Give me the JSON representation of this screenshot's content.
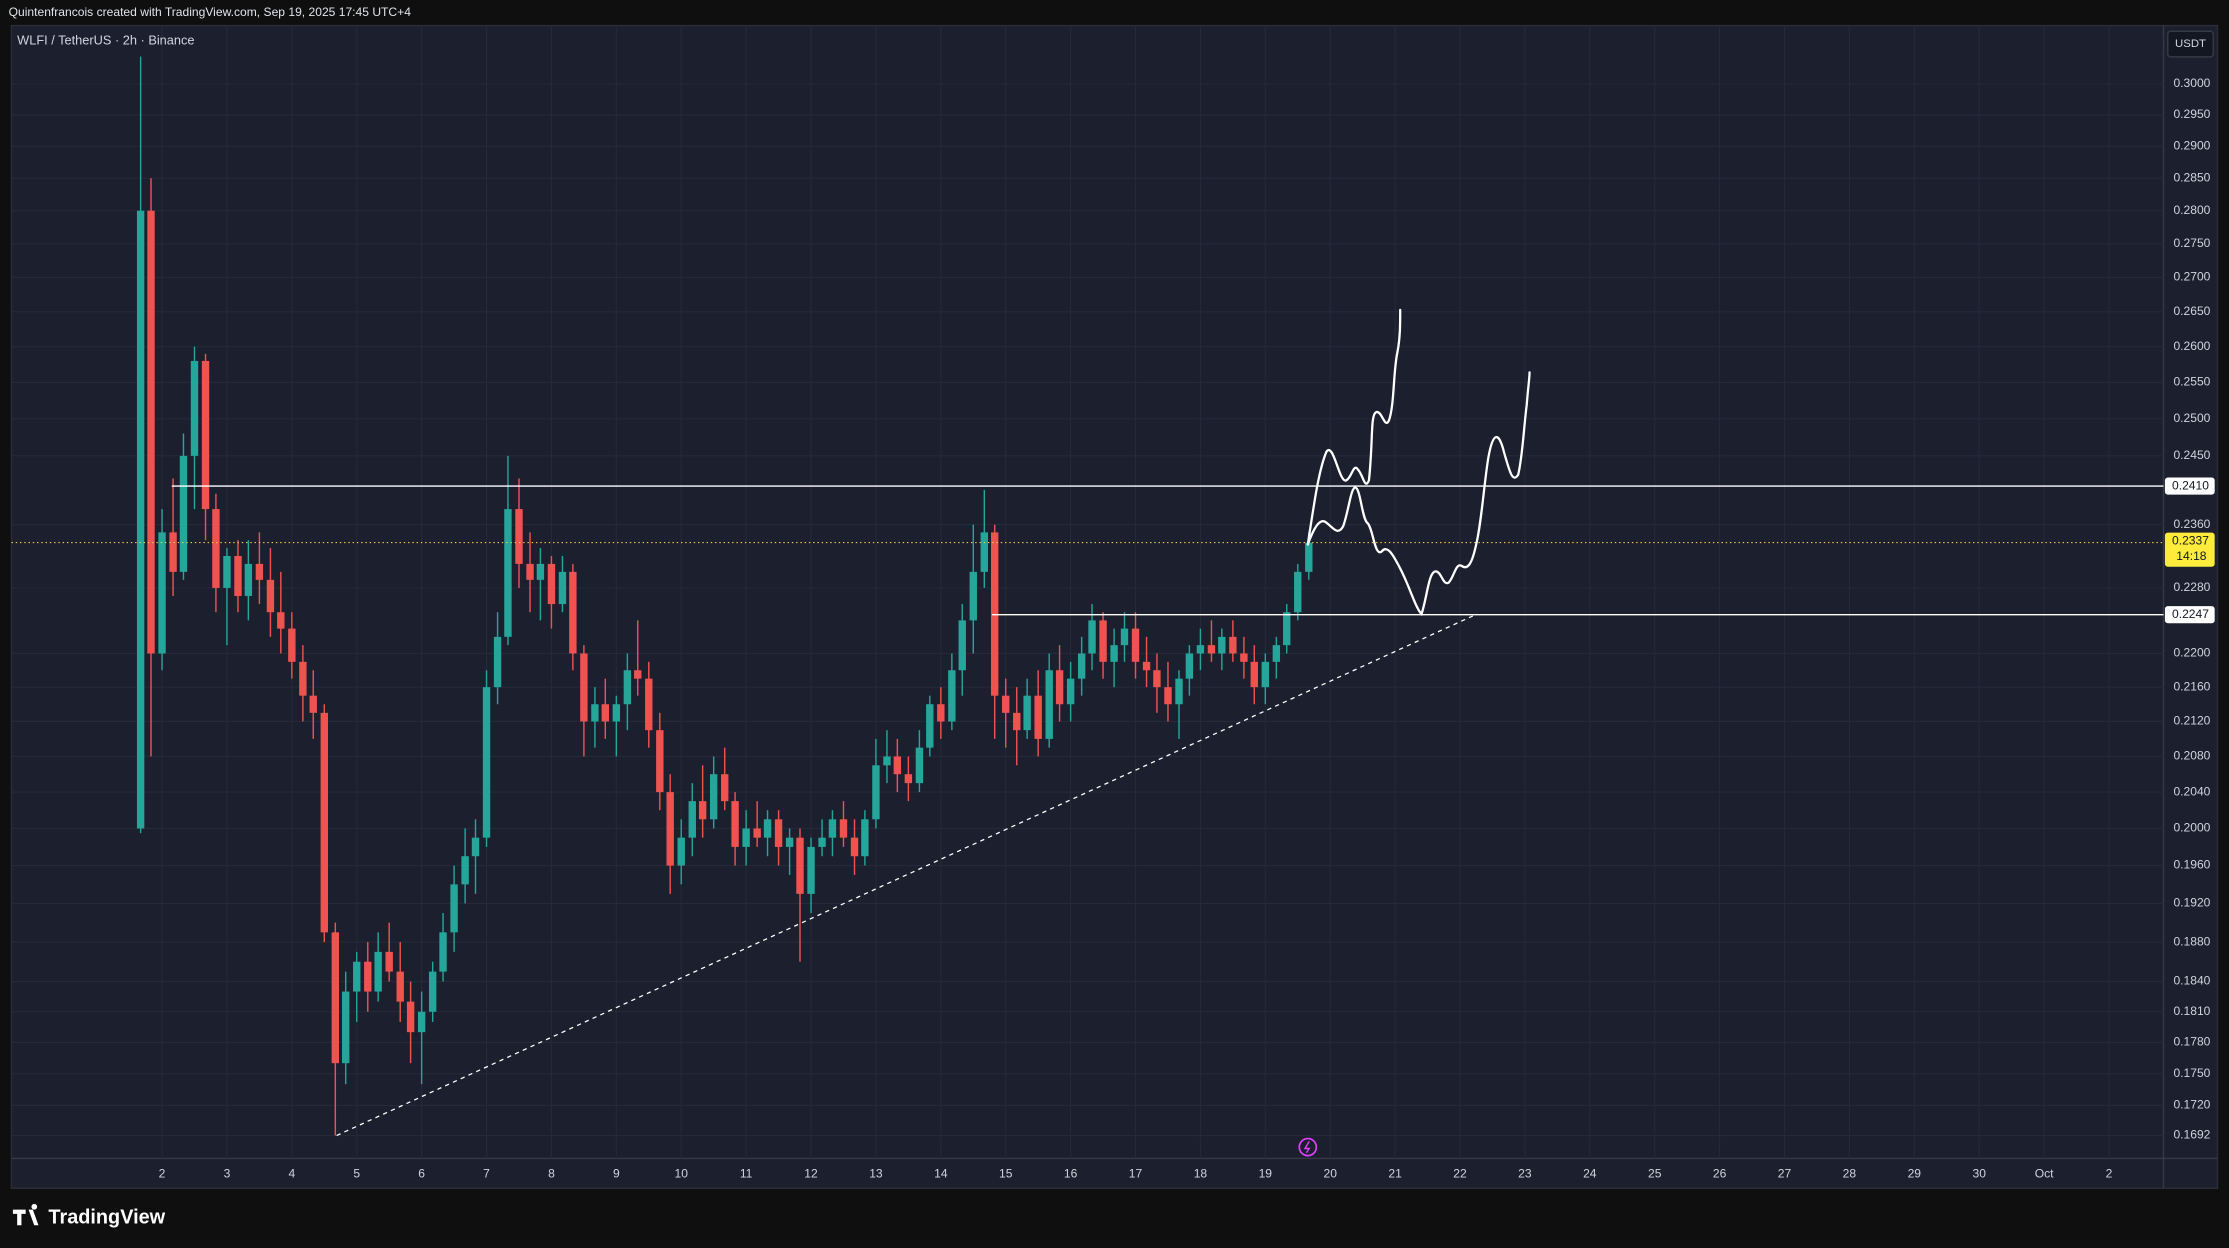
{
  "header": "Quintenfrancois created with TradingView.com, Sep 19, 2025 17:45 UTC+4",
  "footer": "TradingView",
  "chart_data": {
    "type": "candlestick",
    "title": "WLFI / TetherUS · 2h · Binance",
    "currency": "USDT",
    "log": true,
    "grid": true,
    "up_color": "#26a69a",
    "down_color": "#ef5350",
    "xlim": [
      -0.32,
      32.84
    ],
    "ylim": [
      0.1671,
      0.3097
    ],
    "xticks": [
      2,
      3,
      4,
      5,
      6,
      7,
      8,
      9,
      10,
      11,
      12,
      13,
      14,
      15,
      16,
      17,
      18,
      19,
      20,
      21,
      22,
      23,
      24,
      25,
      26,
      27,
      28,
      29,
      30,
      {
        "value": 31,
        "label": "Oct"
      },
      {
        "value": 32,
        "label": "2"
      }
    ],
    "yticks": [
      {
        "value": 0.3,
        "label": "0.3000"
      },
      {
        "value": 0.295,
        "label": "0.2950"
      },
      {
        "value": 0.29,
        "label": "0.2900"
      },
      {
        "value": 0.285,
        "label": "0.2850"
      },
      {
        "value": 0.28,
        "label": "0.2800"
      },
      {
        "value": 0.275,
        "label": "0.2750"
      },
      {
        "value": 0.27,
        "label": "0.2700"
      },
      {
        "value": 0.265,
        "label": "0.2650"
      },
      {
        "value": 0.26,
        "label": "0.2600"
      },
      {
        "value": 0.255,
        "label": "0.2550"
      },
      {
        "value": 0.25,
        "label": "0.2500"
      },
      {
        "value": 0.245,
        "label": "0.2450"
      },
      {
        "value": 0.236,
        "label": "0.2360"
      },
      {
        "value": 0.228,
        "label": "0.2280"
      },
      {
        "value": 0.22,
        "label": "0.2200"
      },
      {
        "value": 0.216,
        "label": "0.2160"
      },
      {
        "value": 0.212,
        "label": "0.2120"
      },
      {
        "value": 0.208,
        "label": "0.2080"
      },
      {
        "value": 0.204,
        "label": "0.2040"
      },
      {
        "value": 0.2,
        "label": "0.2000"
      },
      {
        "value": 0.196,
        "label": "0.1960"
      },
      {
        "value": 0.192,
        "label": "0.1920"
      },
      {
        "value": 0.188,
        "label": "0.1880"
      },
      {
        "value": 0.184,
        "label": "0.1840"
      },
      {
        "value": 0.181,
        "label": "0.1810"
      },
      {
        "value": 0.178,
        "label": "0.1780"
      },
      {
        "value": 0.175,
        "label": "0.1750"
      },
      {
        "value": 0.172,
        "label": "0.1720"
      },
      {
        "value": 0.1692,
        "label": "0.1692"
      }
    ],
    "x": [
      1.67,
      1.83,
      2,
      2.17,
      2.33,
      2.5,
      2.67,
      2.83,
      3,
      3.17,
      3.33,
      3.5,
      3.67,
      3.83,
      4,
      4.17,
      4.33,
      4.5,
      4.67,
      4.83,
      5,
      5.17,
      5.33,
      5.5,
      5.67,
      5.83,
      6,
      6.17,
      6.33,
      6.5,
      6.67,
      6.83,
      7,
      7.17,
      7.33,
      7.5,
      7.67,
      7.83,
      8,
      8.17,
      8.33,
      8.5,
      8.67,
      8.83,
      9,
      9.17,
      9.33,
      9.5,
      9.67,
      9.83,
      10,
      10.17,
      10.33,
      10.5,
      10.67,
      10.83,
      11,
      11.17,
      11.33,
      11.5,
      11.67,
      11.83,
      12,
      12.17,
      12.33,
      12.5,
      12.67,
      12.83,
      13,
      13.17,
      13.33,
      13.5,
      13.67,
      13.83,
      14,
      14.17,
      14.33,
      14.5,
      14.67,
      14.83,
      15,
      15.17,
      15.33,
      15.5,
      15.67,
      15.83,
      16,
      16.17,
      16.33,
      16.5,
      16.67,
      16.83,
      17,
      17.17,
      17.33,
      17.5,
      17.67,
      17.83,
      18,
      18.17,
      18.33,
      18.5,
      18.67,
      18.83,
      19,
      19.17,
      19.33,
      19.5,
      19.67
    ],
    "open": [
      0.2,
      0.28,
      0.22,
      0.235,
      0.23,
      0.245,
      0.258,
      0.238,
      0.228,
      0.232,
      0.227,
      0.231,
      0.229,
      0.225,
      0.223,
      0.219,
      0.215,
      0.213,
      0.189,
      0.176,
      0.183,
      0.186,
      0.183,
      0.187,
      0.185,
      0.182,
      0.179,
      0.181,
      0.185,
      0.189,
      0.194,
      0.197,
      0.199,
      0.216,
      0.222,
      0.238,
      0.231,
      0.229,
      0.231,
      0.226,
      0.23,
      0.22,
      0.212,
      0.214,
      0.212,
      0.214,
      0.218,
      0.217,
      0.211,
      0.204,
      0.196,
      0.199,
      0.203,
      0.201,
      0.206,
      0.203,
      0.198,
      0.2,
      0.199,
      0.201,
      0.198,
      0.199,
      0.193,
      0.198,
      0.199,
      0.201,
      0.199,
      0.197,
      0.201,
      0.207,
      0.208,
      0.206,
      0.205,
      0.209,
      0.214,
      0.212,
      0.218,
      0.224,
      0.23,
      0.235,
      0.215,
      0.213,
      0.211,
      0.215,
      0.21,
      0.218,
      0.214,
      0.217,
      0.22,
      0.224,
      0.219,
      0.221,
      0.223,
      0.219,
      0.218,
      0.216,
      0.214,
      0.217,
      0.22,
      0.221,
      0.22,
      0.222,
      0.22,
      0.219,
      0.216,
      0.219,
      0.221,
      0.225,
      0.23
    ],
    "high": [
      0.3045,
      0.285,
      0.238,
      0.242,
      0.248,
      0.26,
      0.259,
      0.24,
      0.233,
      0.234,
      0.234,
      0.235,
      0.233,
      0.23,
      0.225,
      0.221,
      0.218,
      0.214,
      0.19,
      0.185,
      0.187,
      0.188,
      0.189,
      0.19,
      0.188,
      0.184,
      0.183,
      0.186,
      0.191,
      0.196,
      0.2,
      0.201,
      0.218,
      0.225,
      0.245,
      0.242,
      0.235,
      0.233,
      0.232,
      0.232,
      0.231,
      0.221,
      0.216,
      0.217,
      0.215,
      0.22,
      0.224,
      0.219,
      0.213,
      0.206,
      0.201,
      0.205,
      0.207,
      0.208,
      0.209,
      0.204,
      0.202,
      0.203,
      0.202,
      0.202,
      0.2,
      0.2,
      0.199,
      0.201,
      0.202,
      0.203,
      0.201,
      0.202,
      0.21,
      0.211,
      0.21,
      0.208,
      0.211,
      0.215,
      0.216,
      0.22,
      0.226,
      0.236,
      0.2405,
      0.236,
      0.217,
      0.216,
      0.217,
      0.218,
      0.22,
      0.221,
      0.219,
      0.222,
      0.226,
      0.225,
      0.223,
      0.225,
      0.225,
      0.222,
      0.22,
      0.219,
      0.218,
      0.221,
      0.223,
      0.224,
      0.223,
      0.224,
      0.222,
      0.221,
      0.22,
      0.222,
      0.226,
      0.231,
      0.235
    ],
    "low": [
      0.1995,
      0.208,
      0.218,
      0.227,
      0.229,
      0.238,
      0.234,
      0.225,
      0.221,
      0.225,
      0.224,
      0.226,
      0.222,
      0.22,
      0.217,
      0.212,
      0.21,
      0.188,
      0.1692,
      0.174,
      0.18,
      0.181,
      0.182,
      0.184,
      0.18,
      0.176,
      0.174,
      0.18,
      0.184,
      0.187,
      0.192,
      0.193,
      0.198,
      0.214,
      0.221,
      0.228,
      0.225,
      0.224,
      0.223,
      0.225,
      0.218,
      0.208,
      0.209,
      0.21,
      0.208,
      0.211,
      0.215,
      0.209,
      0.202,
      0.193,
      0.194,
      0.197,
      0.199,
      0.2,
      0.202,
      0.196,
      0.196,
      0.198,
      0.197,
      0.196,
      0.195,
      0.186,
      0.191,
      0.197,
      0.197,
      0.198,
      0.195,
      0.196,
      0.2,
      0.205,
      0.204,
      0.203,
      0.204,
      0.208,
      0.21,
      0.211,
      0.215,
      0.22,
      0.228,
      0.21,
      0.209,
      0.207,
      0.21,
      0.208,
      0.209,
      0.212,
      0.212,
      0.215,
      0.218,
      0.217,
      0.216,
      0.219,
      0.217,
      0.216,
      0.213,
      0.212,
      0.21,
      0.215,
      0.218,
      0.219,
      0.218,
      0.219,
      0.217,
      0.214,
      0.214,
      0.217,
      0.22,
      0.224,
      0.229
    ],
    "close": [
      0.28,
      0.22,
      0.235,
      0.23,
      0.245,
      0.258,
      0.238,
      0.228,
      0.232,
      0.227,
      0.231,
      0.229,
      0.225,
      0.223,
      0.219,
      0.215,
      0.213,
      0.189,
      0.176,
      0.183,
      0.186,
      0.183,
      0.187,
      0.185,
      0.182,
      0.179,
      0.181,
      0.185,
      0.189,
      0.194,
      0.197,
      0.199,
      0.216,
      0.222,
      0.238,
      0.231,
      0.229,
      0.231,
      0.226,
      0.23,
      0.22,
      0.212,
      0.214,
      0.212,
      0.214,
      0.218,
      0.217,
      0.211,
      0.204,
      0.196,
      0.199,
      0.203,
      0.201,
      0.206,
      0.203,
      0.198,
      0.2,
      0.199,
      0.201,
      0.198,
      0.199,
      0.193,
      0.198,
      0.199,
      0.201,
      0.199,
      0.197,
      0.201,
      0.207,
      0.208,
      0.206,
      0.205,
      0.209,
      0.214,
      0.212,
      0.218,
      0.224,
      0.23,
      0.235,
      0.215,
      0.213,
      0.211,
      0.215,
      0.21,
      0.218,
      0.214,
      0.217,
      0.22,
      0.224,
      0.219,
      0.221,
      0.223,
      0.219,
      0.218,
      0.216,
      0.214,
      0.217,
      0.22,
      0.221,
      0.22,
      0.222,
      0.22,
      0.219,
      0.216,
      0.219,
      0.221,
      0.225,
      0.23,
      0.2337
    ],
    "hlines": [
      {
        "value": 0.241,
        "label": "0.2410",
        "x_start": 2.15
      },
      {
        "value": 0.2247,
        "label": "0.2247",
        "x_start": 14.79
      }
    ],
    "last_price": {
      "value": 0.2337,
      "label": "0.2337",
      "countdown": "14:18"
    },
    "trendline": {
      "x": [
        4.69,
        22.24
      ],
      "y": [
        0.1692,
        0.2247
      ]
    }
  }
}
